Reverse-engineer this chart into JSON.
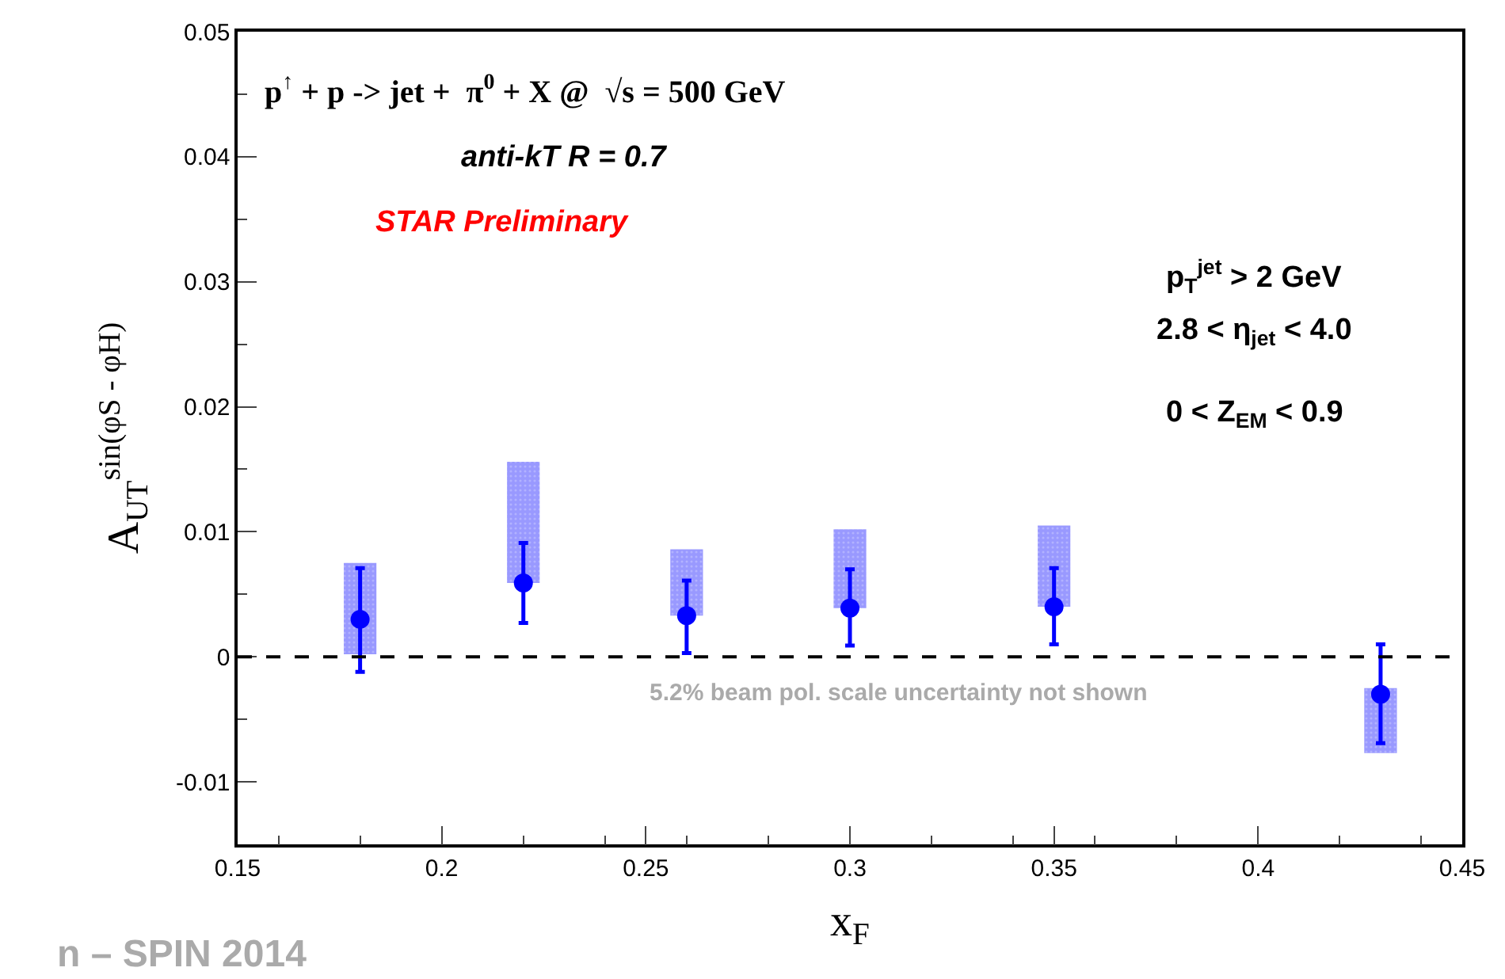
{
  "chart_data": {
    "type": "scatter",
    "xlabel": "x$_{F}$",
    "ylabel": "A$_{UT}$$^{sin(φS - φH)}$",
    "xlim": [
      0.15,
      0.45
    ],
    "xticks": [
      0.15,
      0.2,
      0.25,
      0.3,
      0.35,
      0.4,
      0.45
    ],
    "ylim": [
      -0.015,
      0.05
    ],
    "yticks": [
      -0.01,
      0,
      0.01,
      0.02,
      0.03,
      0.04,
      0.05
    ],
    "marker": "circle",
    "series": [
      {
        "type": "bar",
        "color": "#9999ff",
        "x": [
          0.18,
          0.22,
          0.26,
          0.3,
          0.35,
          0.43
        ],
        "base": [
          0.0002,
          0.0059,
          0.0033,
          0.0039,
          0.004,
          -0.0077
        ],
        "values": [
          0.0073,
          0.0097,
          0.0053,
          0.0063,
          0.0065,
          0.0052
        ]
      },
      {
        "color": "#0000ff",
        "x": [
          0.18,
          0.22,
          0.26,
          0.3,
          0.35,
          0.43
        ],
        "values": [
          0.003,
          0.0059,
          0.0033,
          0.0039,
          0.004,
          -0.003
        ],
        "errors": [
          [
            -0.0012,
            0.0071
          ],
          [
            0.0027,
            0.0091
          ],
          [
            0.0003,
            0.0061
          ],
          [
            0.0009,
            0.007
          ],
          [
            0.001,
            0.0071
          ],
          [
            -0.0069,
            0.001
          ]
        ]
      }
    ],
    "ref_lines": [
      {
        "axis": "y",
        "value": 0,
        "color": "#000000",
        "line_style": "dashed"
      }
    ],
    "annotations": [
      "p$^{↑}$ + p -> jet +  π$^{0}$ + X @  √s = 500 GeV",
      "anti-kT R = 0.7",
      "STAR Preliminary",
      "p$_{T}$$^{jet}$ > 2 GeV",
      "2.8 < η$_{jet}$ < 4.0",
      "0 < Z$_{EM}$ < 0.9",
      "5.2% beam pol. scale uncertainty not shown",
      "n – SPIN 2014"
    ]
  }
}
